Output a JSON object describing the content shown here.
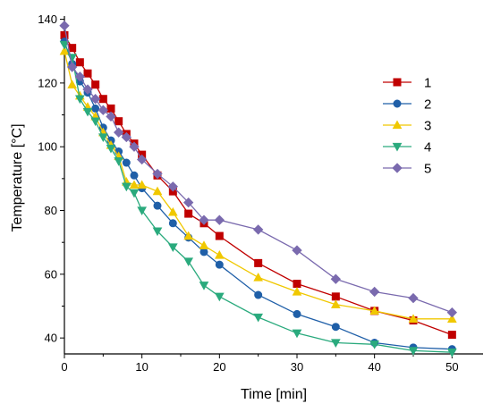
{
  "chart_data": {
    "type": "line",
    "title": "",
    "xlabel": "Time [min]",
    "ylabel": "Temperature [°C]",
    "xlim": [
      0,
      54
    ],
    "ylim": [
      35,
      141
    ],
    "xticks": [
      0,
      10,
      20,
      30,
      40,
      50
    ],
    "yticks": [
      40,
      60,
      80,
      100,
      120,
      140
    ],
    "grid": false,
    "legend_position": "top-right",
    "series": [
      {
        "name": "1",
        "color": "#c00000",
        "marker": "square",
        "x": [
          0,
          1,
          2,
          3,
          4,
          5,
          6,
          7,
          8,
          9,
          10,
          12,
          14,
          16,
          18,
          20,
          25,
          30,
          35,
          40,
          45,
          50
        ],
        "y": [
          135,
          131,
          126.5,
          123,
          119.5,
          115,
          112,
          108,
          104,
          101,
          97.5,
          91,
          86,
          79,
          76,
          72,
          63.5,
          57,
          53,
          48.5,
          45.5,
          41
        ]
      },
      {
        "name": "2",
        "color": "#1f5fa8",
        "marker": "circle",
        "x": [
          0,
          1,
          2,
          3,
          4,
          5,
          6,
          7,
          8,
          9,
          10,
          12,
          14,
          16,
          18,
          20,
          25,
          30,
          35,
          40,
          45,
          50
        ],
        "y": [
          133,
          126,
          120.5,
          117,
          112,
          106,
          102,
          98.5,
          95,
          91,
          87,
          81.5,
          76,
          71.5,
          67,
          63,
          53.5,
          47.5,
          43.5,
          38.5,
          37,
          36.5
        ]
      },
      {
        "name": "3",
        "color": "#f0c800",
        "marker": "triangle-up",
        "x": [
          0,
          1,
          2,
          3,
          4,
          5,
          6,
          7,
          8,
          9,
          10,
          12,
          14,
          16,
          18,
          20,
          25,
          30,
          35,
          40,
          45,
          50
        ],
        "y": [
          130,
          119.5,
          116,
          112.5,
          109.5,
          104.5,
          100.5,
          97,
          89,
          88,
          88,
          86,
          79.5,
          72,
          69,
          66,
          59,
          54.5,
          50.5,
          48.5,
          46,
          46
        ]
      },
      {
        "name": "4",
        "color": "#2aaa7d",
        "marker": "triangle-down",
        "x": [
          0,
          1,
          2,
          3,
          4,
          5,
          6,
          7,
          8,
          9,
          10,
          12,
          14,
          16,
          18,
          20,
          25,
          30,
          35,
          40,
          45,
          50
        ],
        "y": [
          132,
          128,
          115,
          111,
          108,
          103,
          99.5,
          95.5,
          87.5,
          85.5,
          80,
          73.5,
          68.5,
          64,
          56.5,
          53,
          46.5,
          41.5,
          38.5,
          38,
          36,
          35.5
        ]
      },
      {
        "name": "5",
        "color": "#7a6aae",
        "marker": "diamond",
        "x": [
          0,
          1,
          2,
          3,
          4,
          5,
          6,
          7,
          8,
          9,
          10,
          12,
          14,
          16,
          18,
          20,
          25,
          30,
          35,
          40,
          45,
          50
        ],
        "y": [
          138,
          125,
          122,
          118,
          115,
          111.5,
          109.5,
          104.5,
          103,
          100,
          96,
          91.5,
          87.5,
          82.5,
          77,
          77,
          74,
          67.5,
          58.5,
          54.5,
          52.5,
          48
        ]
      }
    ]
  }
}
